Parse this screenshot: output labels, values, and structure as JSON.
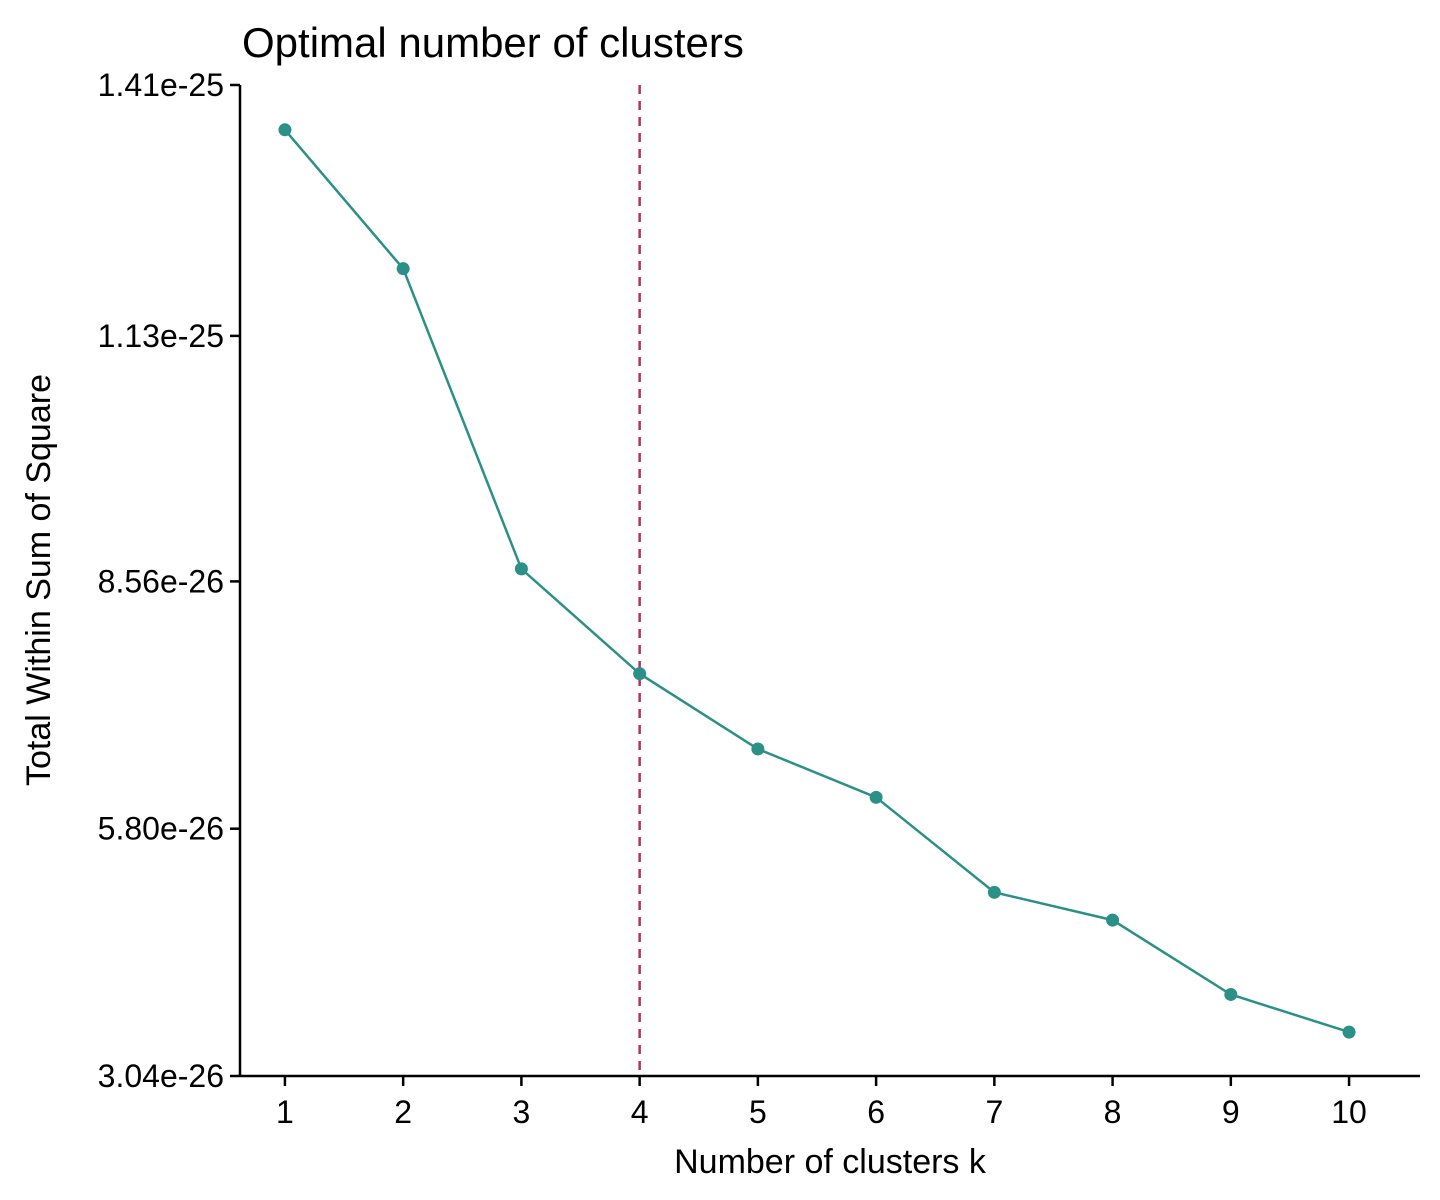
{
  "colors": {
    "series": "#2a9088",
    "reference_line": "#b2335f",
    "axis": "#000000",
    "background": "#ffffff"
  },
  "chart_data": {
    "type": "line",
    "title": "Optimal number of clusters",
    "xlabel": "Number of clusters k",
    "ylabel": "Total Within Sum of Square",
    "x": [
      1,
      2,
      3,
      4,
      5,
      6,
      7,
      8,
      9,
      10
    ],
    "x_tick_labels": [
      "1",
      "2",
      "3",
      "4",
      "5",
      "6",
      "7",
      "8",
      "9",
      "10"
    ],
    "xlim": [
      0.62,
      10.6
    ],
    "y_ticks": [
      3.04e-26,
      5.8e-26,
      8.56e-26,
      1.13e-25,
      1.41e-25
    ],
    "y_tick_labels": [
      "3.04e-26",
      "5.80e-26",
      "8.56e-26",
      "1.13e-25",
      "1.41e-25"
    ],
    "ylim": [
      3.04e-26,
      1.41e-25
    ],
    "series": [
      {
        "values": [
          1.36e-25,
          1.205e-25,
          8.7e-26,
          7.53e-26,
          6.69e-26,
          6.15e-26,
          5.09e-26,
          4.78e-26,
          3.95e-26,
          3.53e-26
        ],
        "marker": "circle"
      }
    ],
    "reference_lines": [
      {
        "orientation": "vertical",
        "x": 4,
        "style": "dashed"
      }
    ],
    "grid": false,
    "legend": "none"
  }
}
